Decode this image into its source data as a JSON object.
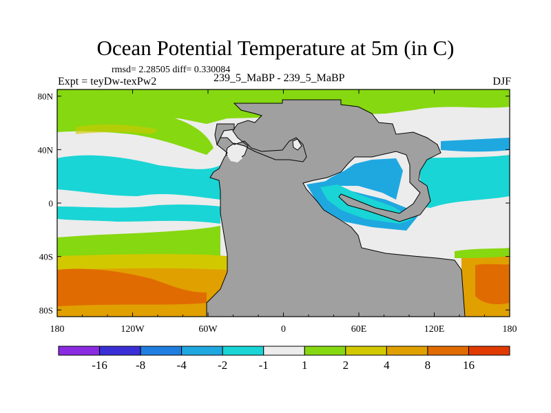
{
  "chart_data": {
    "type": "heatmap",
    "title": "Ocean Potential Temperature at 5m (in C)",
    "subtitle": "rmsd= 2.28505 diff= 0.330084",
    "left_label": "Expt = teyDw-texPw2",
    "center_label": "239_5_MaBP - 239_5_MaBP",
    "right_label": "DJF",
    "x_ticks": [
      "180",
      "120W",
      "60W",
      "0",
      "60E",
      "120E",
      "180"
    ],
    "y_ticks": [
      "80N",
      "40N",
      "0",
      "40S",
      "80S"
    ],
    "xlim": [
      -180,
      180
    ],
    "ylim": [
      -85,
      85
    ],
    "colorbar": {
      "levels": [
        "-16",
        "-8",
        "-4",
        "-2",
        "-1",
        "1",
        "2",
        "4",
        "8",
        "16"
      ],
      "colors": [
        "#8a2be2",
        "#3a2fd6",
        "#1f7ee0",
        "#1fa8e0",
        "#19d5d5",
        "#ececec",
        "#86d810",
        "#d2c800",
        "#e0a000",
        "#e06b00",
        "#e03a00"
      ]
    },
    "land_color": "#a0a0a0"
  }
}
